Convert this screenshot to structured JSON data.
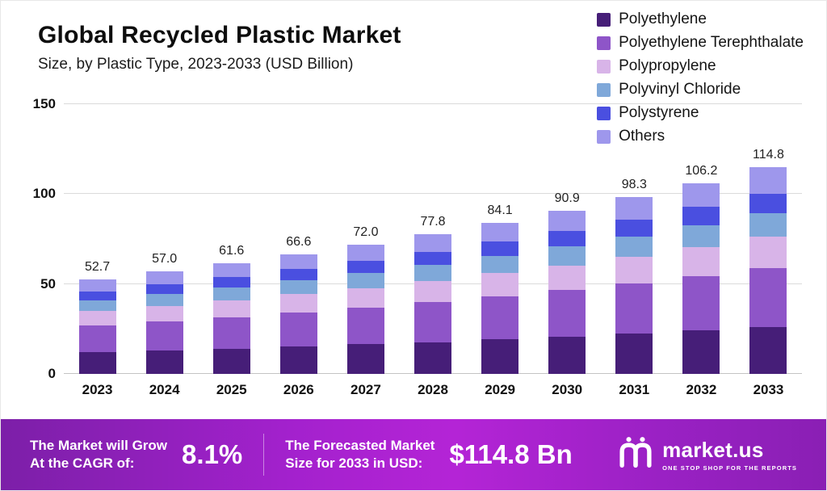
{
  "chart_data": {
    "type": "bar",
    "stacked": true,
    "title": "Global Recycled Plastic Market",
    "subtitle": "Size, by Plastic Type, 2023-2033 (USD Billion)",
    "categories": [
      "2023",
      "2024",
      "2025",
      "2026",
      "2027",
      "2028",
      "2029",
      "2030",
      "2031",
      "2032",
      "2033"
    ],
    "totals": [
      52.7,
      57.0,
      61.6,
      66.6,
      72.0,
      77.8,
      84.1,
      90.9,
      98.3,
      106.2,
      114.8
    ],
    "series": [
      {
        "name": "Polyethylene",
        "color": "#461e78",
        "values": [
          12.0,
          13.0,
          14.0,
          15.2,
          16.4,
          17.7,
          19.2,
          20.7,
          22.4,
          24.2,
          26.2
        ]
      },
      {
        "name": "Polyethylene Terephthalate",
        "color": "#8e55c8",
        "values": [
          15.0,
          16.2,
          17.6,
          19.0,
          20.5,
          22.2,
          24.0,
          25.9,
          28.0,
          30.3,
          32.7
        ]
      },
      {
        "name": "Polypropylene",
        "color": "#d8b4e8",
        "values": [
          8.0,
          8.7,
          9.4,
          10.1,
          10.9,
          11.8,
          12.8,
          13.8,
          14.9,
          16.1,
          17.4
        ]
      },
      {
        "name": "Polyvinyl Chloride",
        "color": "#7fa8d9",
        "values": [
          6.0,
          6.5,
          7.0,
          7.6,
          8.2,
          8.9,
          9.6,
          10.4,
          11.2,
          12.1,
          13.1
        ]
      },
      {
        "name": "Polystyrene",
        "color": "#4a4fe0",
        "values": [
          5.0,
          5.4,
          5.9,
          6.3,
          6.8,
          7.4,
          8.0,
          8.6,
          9.3,
          10.1,
          10.9
        ]
      },
      {
        "name": "Others",
        "color": "#9e97ec",
        "values": [
          6.7,
          7.2,
          7.7,
          8.4,
          9.2,
          9.8,
          10.5,
          11.5,
          12.5,
          13.4,
          14.5
        ]
      }
    ],
    "ylim": [
      0,
      150
    ],
    "yticks": [
      0,
      50,
      100,
      150
    ],
    "grid": true,
    "legend_position": "top-right"
  },
  "banner": {
    "cagr_label_line1": "The Market will Grow",
    "cagr_label_line2": "At the CAGR of:",
    "cagr_value": "8.1%",
    "forecast_label_line1": "The Forecasted Market",
    "forecast_label_line2": "Size for 2033 in USD:",
    "forecast_value": "$114.8 Bn",
    "brand_name": "market.us",
    "brand_tagline": "ONE STOP SHOP FOR THE REPORTS"
  }
}
